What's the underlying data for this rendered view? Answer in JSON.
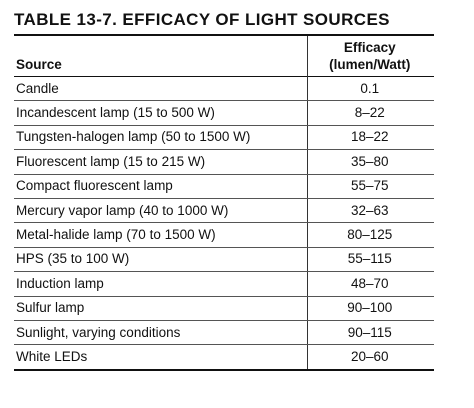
{
  "table": {
    "title": "TABLE 13-7.  EFFICACY OF LIGHT SOURCES",
    "header": {
      "source": "Source",
      "efficacy_line1": "Efficacy",
      "efficacy_line2": "(lumen/Watt)"
    },
    "rows": [
      {
        "source": "Candle",
        "efficacy": "0.1"
      },
      {
        "source": "Incandescent lamp (15 to 500 W)",
        "efficacy": "8–22"
      },
      {
        "source": "Tungsten-halogen lamp (50 to 1500 W)",
        "efficacy": "18–22"
      },
      {
        "source": "Fluorescent lamp (15 to 215 W)",
        "efficacy": "35–80"
      },
      {
        "source": "Compact fluorescent lamp",
        "efficacy": "55–75"
      },
      {
        "source": "Mercury vapor lamp (40 to 1000 W)",
        "efficacy": "32–63"
      },
      {
        "source": "Metal-halide lamp (70 to 1500 W)",
        "efficacy": "80–125"
      },
      {
        "source": "HPS (35 to 100 W)",
        "efficacy": "55–115"
      },
      {
        "source": "Induction lamp",
        "efficacy": "48–70"
      },
      {
        "source": "Sulfur lamp",
        "efficacy": "90–100"
      },
      {
        "source": "Sunlight, varying conditions",
        "efficacy": "90–115"
      },
      {
        "source": "White LEDs",
        "efficacy": "20–60"
      }
    ]
  }
}
